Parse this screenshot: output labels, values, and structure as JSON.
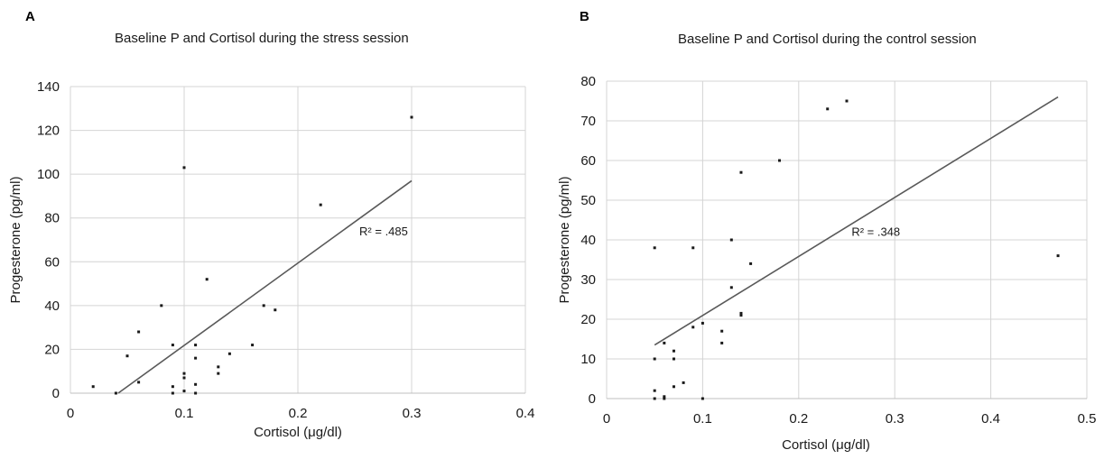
{
  "chart_data": [
    {
      "panel_label": "A",
      "type": "scatter",
      "title": "Baseline P and Cortisol during the stress session",
      "xlabel": "Cortisol (μg/dl)",
      "ylabel": "Progesterone (pg/ml)",
      "xlim": [
        0,
        0.4
      ],
      "ylim": [
        0,
        140
      ],
      "xticks": [
        0,
        0.1,
        0.2,
        0.3,
        0.4
      ],
      "yticks": [
        0,
        20,
        40,
        60,
        80,
        100,
        120,
        140
      ],
      "xtick_labels": [
        "0",
        "0.1",
        "0.2",
        "0.3",
        "0.4"
      ],
      "ytick_labels": [
        "0",
        "20",
        "40",
        "60",
        "80",
        "100",
        "120",
        "140"
      ],
      "grid": true,
      "points": [
        [
          0.02,
          3
        ],
        [
          0.04,
          0
        ],
        [
          0.05,
          17
        ],
        [
          0.06,
          5
        ],
        [
          0.06,
          28
        ],
        [
          0.08,
          40
        ],
        [
          0.09,
          22
        ],
        [
          0.09,
          3
        ],
        [
          0.09,
          0
        ],
        [
          0.1,
          103
        ],
        [
          0.1,
          9
        ],
        [
          0.1,
          7
        ],
        [
          0.1,
          1
        ],
        [
          0.11,
          22
        ],
        [
          0.11,
          16
        ],
        [
          0.11,
          4
        ],
        [
          0.11,
          0
        ],
        [
          0.12,
          52
        ],
        [
          0.13,
          12
        ],
        [
          0.13,
          9
        ],
        [
          0.14,
          18
        ],
        [
          0.16,
          22
        ],
        [
          0.17,
          40
        ],
        [
          0.18,
          38
        ],
        [
          0.22,
          86
        ],
        [
          0.3,
          126
        ]
      ],
      "trendline": [
        [
          0.042,
          0
        ],
        [
          0.3,
          97
        ]
      ],
      "annotation": "R² = .485",
      "annotation_pos": [
        0.254,
        72
      ]
    },
    {
      "panel_label": "B",
      "type": "scatter",
      "title": "Baseline P and Cortisol during the control session",
      "xlabel": "Cortisol (μg/dl)",
      "ylabel": "Progesterone (pg/ml)",
      "xlim": [
        0,
        0.5
      ],
      "ylim": [
        0,
        80
      ],
      "xticks": [
        0,
        0.1,
        0.2,
        0.3,
        0.4,
        0.5
      ],
      "yticks": [
        0,
        10,
        20,
        30,
        40,
        50,
        60,
        70,
        80
      ],
      "xtick_labels": [
        "0",
        "0.1",
        "0.2",
        "0.3",
        "0.4",
        "0.5"
      ],
      "ytick_labels": [
        "0",
        "10",
        "20",
        "30",
        "40",
        "50",
        "60",
        "70",
        "80"
      ],
      "grid": true,
      "points": [
        [
          0.05,
          38
        ],
        [
          0.05,
          10
        ],
        [
          0.05,
          2
        ],
        [
          0.05,
          0
        ],
        [
          0.06,
          14
        ],
        [
          0.06,
          0
        ],
        [
          0.06,
          0.5
        ],
        [
          0.07,
          12
        ],
        [
          0.07,
          10
        ],
        [
          0.07,
          3
        ],
        [
          0.08,
          4
        ],
        [
          0.09,
          38
        ],
        [
          0.09,
          18
        ],
        [
          0.1,
          19
        ],
        [
          0.1,
          0
        ],
        [
          0.12,
          17
        ],
        [
          0.12,
          14
        ],
        [
          0.13,
          40
        ],
        [
          0.13,
          28
        ],
        [
          0.14,
          57
        ],
        [
          0.14,
          21
        ],
        [
          0.14,
          21.5
        ],
        [
          0.15,
          34
        ],
        [
          0.18,
          60
        ],
        [
          0.23,
          73
        ],
        [
          0.25,
          75
        ],
        [
          0.47,
          36
        ]
      ],
      "trendline": [
        [
          0.05,
          13.5
        ],
        [
          0.47,
          76
        ]
      ],
      "annotation": "R² = .348",
      "annotation_pos": [
        0.255,
        41
      ]
    }
  ]
}
